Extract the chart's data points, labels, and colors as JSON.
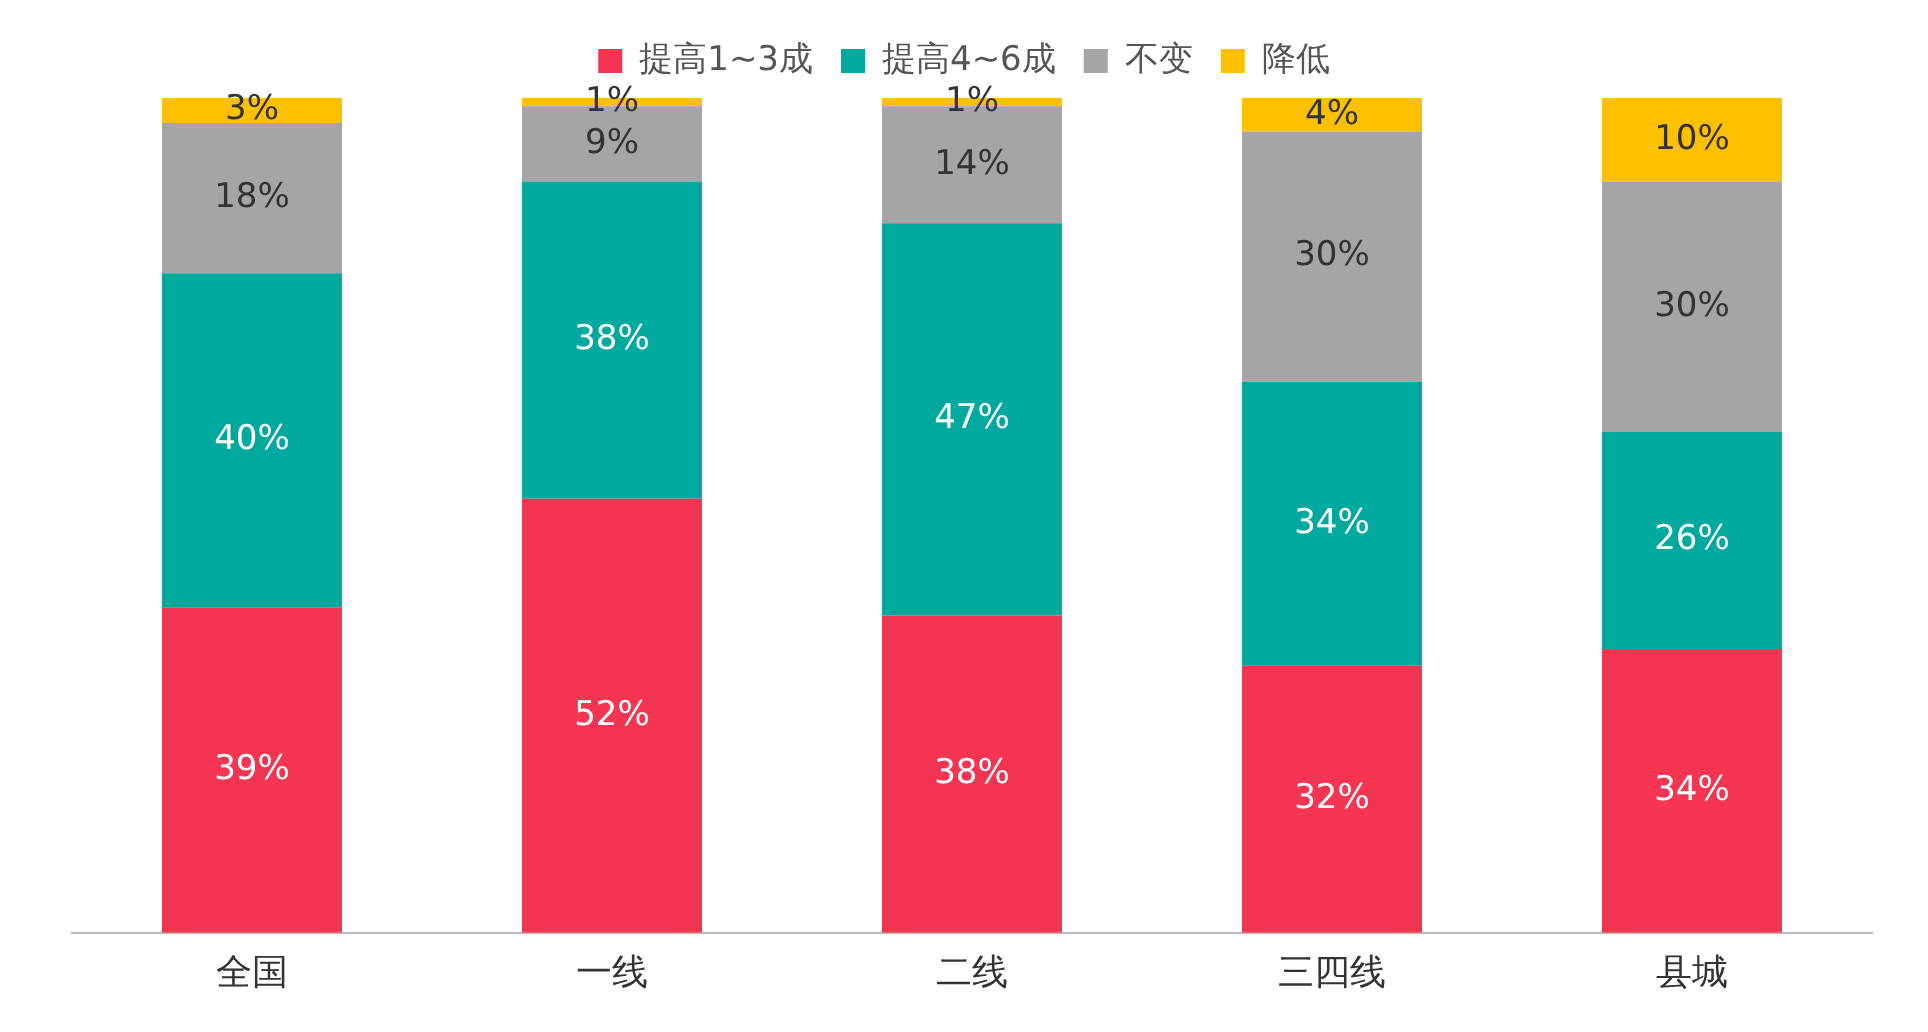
{
  "chart_data": {
    "type": "bar",
    "stacked": true,
    "categories": [
      "全国",
      "一线",
      "二线",
      "三四线",
      "县城"
    ],
    "series": [
      {
        "name": "提高1~3成",
        "color": "#f33552",
        "values": [
          39,
          52,
          38,
          32,
          34
        ],
        "value_labels": [
          "39%",
          "52%",
          "38%",
          "32%",
          "34%"
        ]
      },
      {
        "name": "提高4~6成",
        "color": "#00a99d",
        "values": [
          40,
          38,
          47,
          34,
          26
        ],
        "value_labels": [
          "40%",
          "38%",
          "47%",
          "34%",
          "26%"
        ]
      },
      {
        "name": "不变",
        "color": "#a5a5a5",
        "values": [
          18,
          9,
          14,
          30,
          30
        ],
        "value_labels": [
          "18%",
          "9%",
          "14%",
          "30%",
          "30%"
        ]
      },
      {
        "name": "降低",
        "color": "#ffc000",
        "values": [
          3,
          1,
          1,
          4,
          10
        ],
        "value_labels": [
          "3%",
          "1%",
          "1%",
          "4%",
          "10%"
        ]
      }
    ],
    "ylim": [
      0,
      100
    ],
    "tick_labels": "x",
    "legend": "top",
    "grid": false
  }
}
